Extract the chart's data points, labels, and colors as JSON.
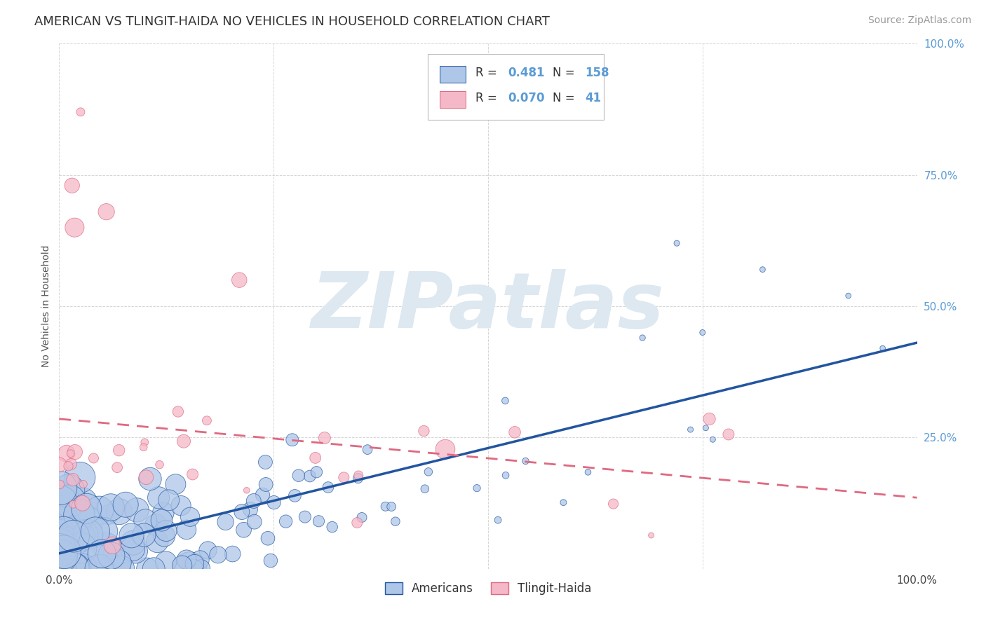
{
  "title": "AMERICAN VS TLINGIT-HAIDA NO VEHICLES IN HOUSEHOLD CORRELATION CHART",
  "source": "Source: ZipAtlas.com",
  "ylabel": "No Vehicles in Household",
  "legend_label1": "Americans",
  "legend_label2": "Tlingit-Haida",
  "r1": 0.481,
  "n1": 158,
  "r2": 0.07,
  "n2": 41,
  "color1": "#aec6e8",
  "color2": "#f4b8c8",
  "line1_color": "#2255a0",
  "line2_color": "#e06880",
  "watermark": "ZIPatlas",
  "watermark_color": "#dde8f0",
  "background_color": "#ffffff",
  "title_fontsize": 13,
  "source_fontsize": 10,
  "seed": 42
}
